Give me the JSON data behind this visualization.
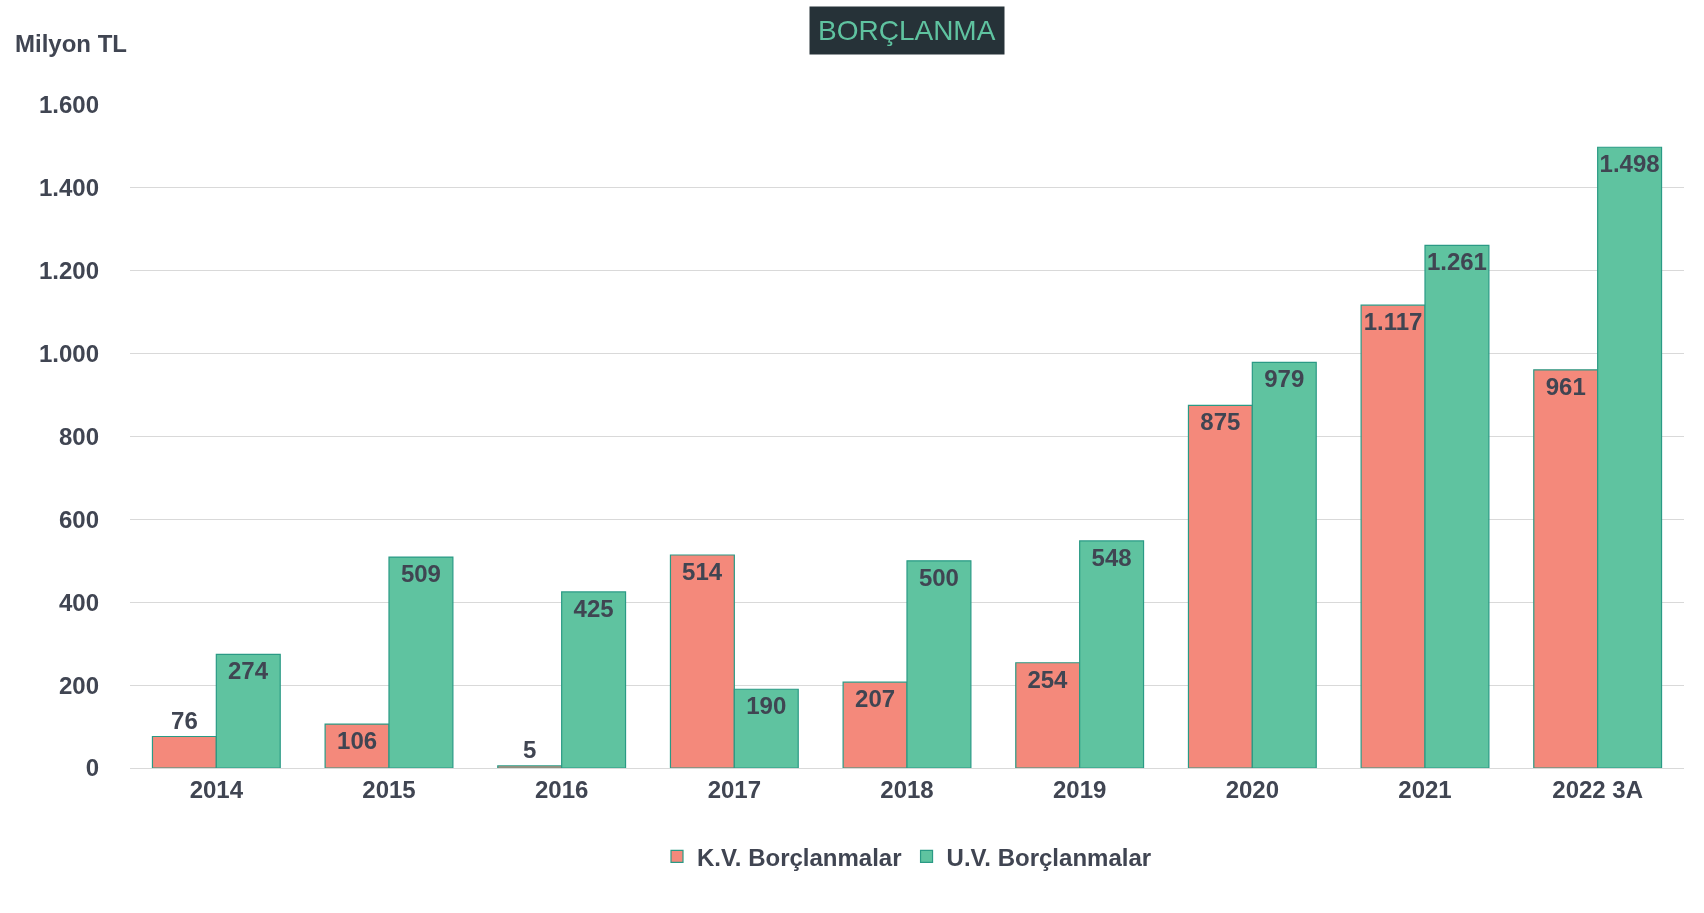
{
  "chart_data": {
    "type": "bar",
    "title": "BORÇLANMA",
    "ylabel": "Milyon TL",
    "categories": [
      "2014",
      "2015",
      "2016",
      "2017",
      "2018",
      "2019",
      "2020",
      "2021",
      "2022 3A"
    ],
    "series": [
      {
        "name": "K.V. Borçlanmalar",
        "color": "#f4897b",
        "values": [
          76,
          106,
          5,
          514,
          207,
          254,
          875,
          1117,
          961
        ],
        "value_labels": [
          "76",
          "106",
          "5",
          "514",
          "207",
          "254",
          "875",
          "1.117",
          "961"
        ]
      },
      {
        "name": "U.V. Borçlanmalar",
        "color": "#5fc3a0",
        "values": [
          274,
          509,
          425,
          190,
          500,
          548,
          979,
          1261,
          1498
        ],
        "value_labels": [
          "274",
          "509",
          "425",
          "190",
          "500",
          "548",
          "979",
          "1.261",
          "1.498"
        ]
      }
    ],
    "ylim": [
      0,
      1600
    ],
    "yticks": [
      0,
      200,
      400,
      600,
      800,
      {
        "value": 1000,
        "label": "1.000"
      },
      {
        "value": 1200,
        "label": "1.200"
      },
      {
        "value": 1400,
        "label": "1.400"
      },
      {
        "value": 1600,
        "label": "1.600"
      }
    ],
    "grid": "y",
    "legend": "bottom"
  }
}
